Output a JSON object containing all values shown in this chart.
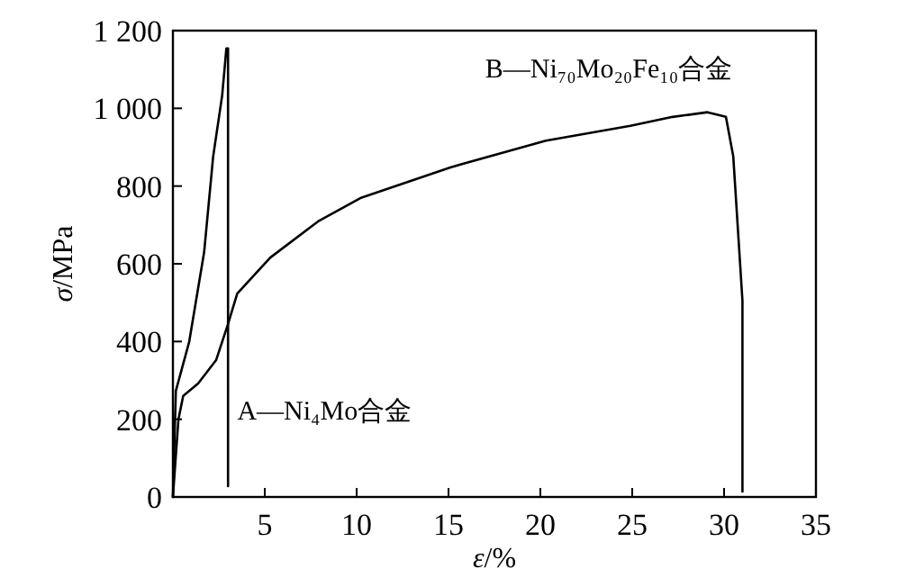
{
  "chart_data": {
    "type": "line",
    "xlabel": "ε/%",
    "ylabel": "σ/MPa",
    "xlim": [
      0,
      35
    ],
    "ylim": [
      0,
      1200
    ],
    "xticks": [
      5,
      10,
      15,
      20,
      25,
      30,
      35
    ],
    "yticks": [
      0,
      200,
      400,
      600,
      800,
      {
        "value": 1000,
        "label": "1 000"
      },
      {
        "value": 1200,
        "label": "1 200"
      }
    ],
    "grid": false,
    "marker": "none",
    "line_style": "solid",
    "series": [
      {
        "name": "A—Ni₄Mo合金",
        "color": "#000000",
        "x": [
          0,
          0.16,
          0.88,
          1.7,
          2.19,
          2.68,
          2.91,
          3.0,
          3.0
        ],
        "values": [
          0,
          273,
          398,
          630,
          876,
          1033,
          1154,
          1154,
          28
        ]
      },
      {
        "name": "B—Ni₇₀Mo₂₀Fe₁₀合金",
        "color": "#000000",
        "x": [
          0,
          0.3,
          0.56,
          1.37,
          2.35,
          3.0,
          3.5,
          5.3,
          7.9,
          10.2,
          15.1,
          20.3,
          24.9,
          27.2,
          29.1,
          30.1,
          30.5,
          31.0,
          31.0
        ],
        "values": [
          0,
          200,
          260,
          292,
          352,
          445,
          523,
          616,
          709,
          769,
          848,
          917,
          955,
          978,
          990,
          978,
          876,
          505,
          14
        ]
      }
    ]
  }
}
